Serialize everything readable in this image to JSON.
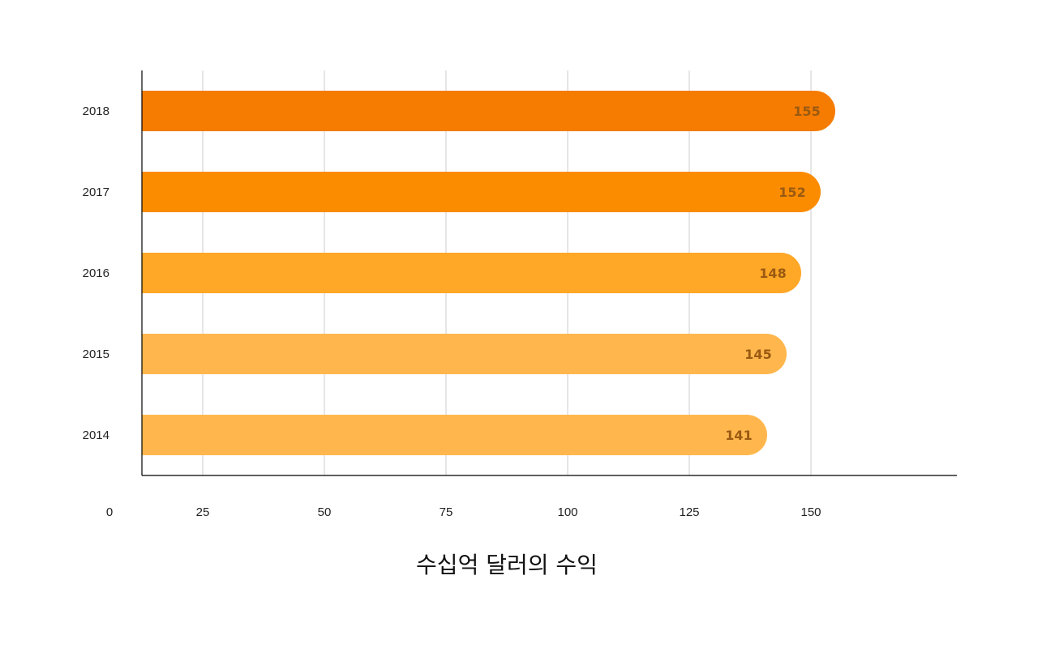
{
  "chart_data": {
    "type": "bar",
    "orientation": "horizontal",
    "categories": [
      "2018",
      "2017",
      "2016",
      "2015",
      "2014"
    ],
    "values": [
      155,
      152,
      148,
      145,
      141
    ],
    "data_labels": [
      "155",
      "152",
      "148",
      "145",
      "141"
    ],
    "bar_colors": [
      "#f57c00",
      "#fb8c00",
      "#ffa726",
      "#ffb74d",
      "#ffb74d"
    ],
    "xlabel": "수십억 달러의 수익",
    "x_ticks": [
      0,
      25,
      50,
      75,
      100,
      125,
      150
    ],
    "x_tick_labels": [
      "0",
      "25",
      "50",
      "75",
      "100",
      "125",
      "150"
    ],
    "xlim": [
      0,
      175
    ],
    "grid": "vertical",
    "legend": "none"
  }
}
